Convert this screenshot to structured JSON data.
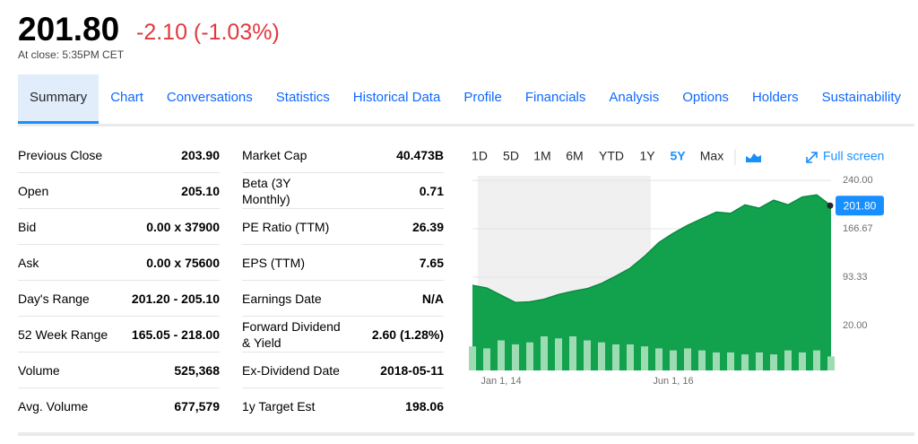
{
  "header": {
    "price": "201.80",
    "change": "-2.10 (-1.03%)",
    "close_note": "At close: 5:35PM CET"
  },
  "tabs": [
    "Summary",
    "Chart",
    "Conversations",
    "Statistics",
    "Historical Data",
    "Profile",
    "Financials",
    "Analysis",
    "Options",
    "Holders",
    "Sustainability"
  ],
  "selected_tab": 0,
  "summary_left": [
    [
      "Previous Close",
      "203.90"
    ],
    [
      "Open",
      "205.10"
    ],
    [
      "Bid",
      "0.00 x 37900"
    ],
    [
      "Ask",
      "0.00 x 75600"
    ],
    [
      "Day's Range",
      "201.20 - 205.10"
    ],
    [
      "52 Week Range",
      "165.05 - 218.00"
    ],
    [
      "Volume",
      "525,368"
    ],
    [
      "Avg. Volume",
      "677,579"
    ]
  ],
  "summary_right": [
    [
      "Market Cap",
      "40.473B"
    ],
    [
      "Beta (3Y Monthly)",
      "0.71"
    ],
    [
      "PE Ratio (TTM)",
      "26.39"
    ],
    [
      "EPS (TTM)",
      "7.65"
    ],
    [
      "Earnings Date",
      "N/A"
    ],
    [
      "Forward Dividend & Yield",
      "2.60 (1.28%)"
    ],
    [
      "Ex-Dividend Date",
      "2018-05-11"
    ],
    [
      "1y Target Est",
      "198.06"
    ]
  ],
  "chart_data": {
    "type": "area",
    "ranges": [
      "1D",
      "5D",
      "1M",
      "6M",
      "YTD",
      "1Y",
      "5Y",
      "Max"
    ],
    "selected_range": 6,
    "full_screen": "Full screen",
    "categories": [
      null,
      null,
      "Jan 1, 14",
      null,
      null,
      null,
      null,
      null,
      null,
      null,
      null,
      null,
      null,
      null,
      "Jun 1, 16",
      null,
      null,
      null,
      null,
      null,
      null,
      null,
      null,
      null,
      null,
      null
    ],
    "values": [
      81,
      77,
      66,
      55,
      56,
      60,
      67,
      72,
      76,
      84,
      95,
      107,
      125,
      146,
      160,
      172,
      182,
      192,
      190,
      203,
      198,
      210,
      203,
      215,
      218,
      201.8
    ],
    "volume": [
      24,
      22,
      30,
      26,
      28,
      34,
      32,
      34,
      30,
      28,
      26,
      26,
      24,
      22,
      20,
      22,
      20,
      18,
      18,
      16,
      18,
      16,
      20,
      18,
      20,
      14
    ],
    "color": "#12a24e",
    "volume_color": "#9ddcb2",
    "ylim": [
      -48,
      247
    ],
    "yticks": [
      {
        "value": 240,
        "label": "240.00"
      },
      {
        "value": 166.67,
        "label": "166.67"
      },
      {
        "value": 93.33,
        "label": "93.33"
      },
      {
        "value": 20,
        "label": "20.00"
      }
    ],
    "grid": true
  }
}
